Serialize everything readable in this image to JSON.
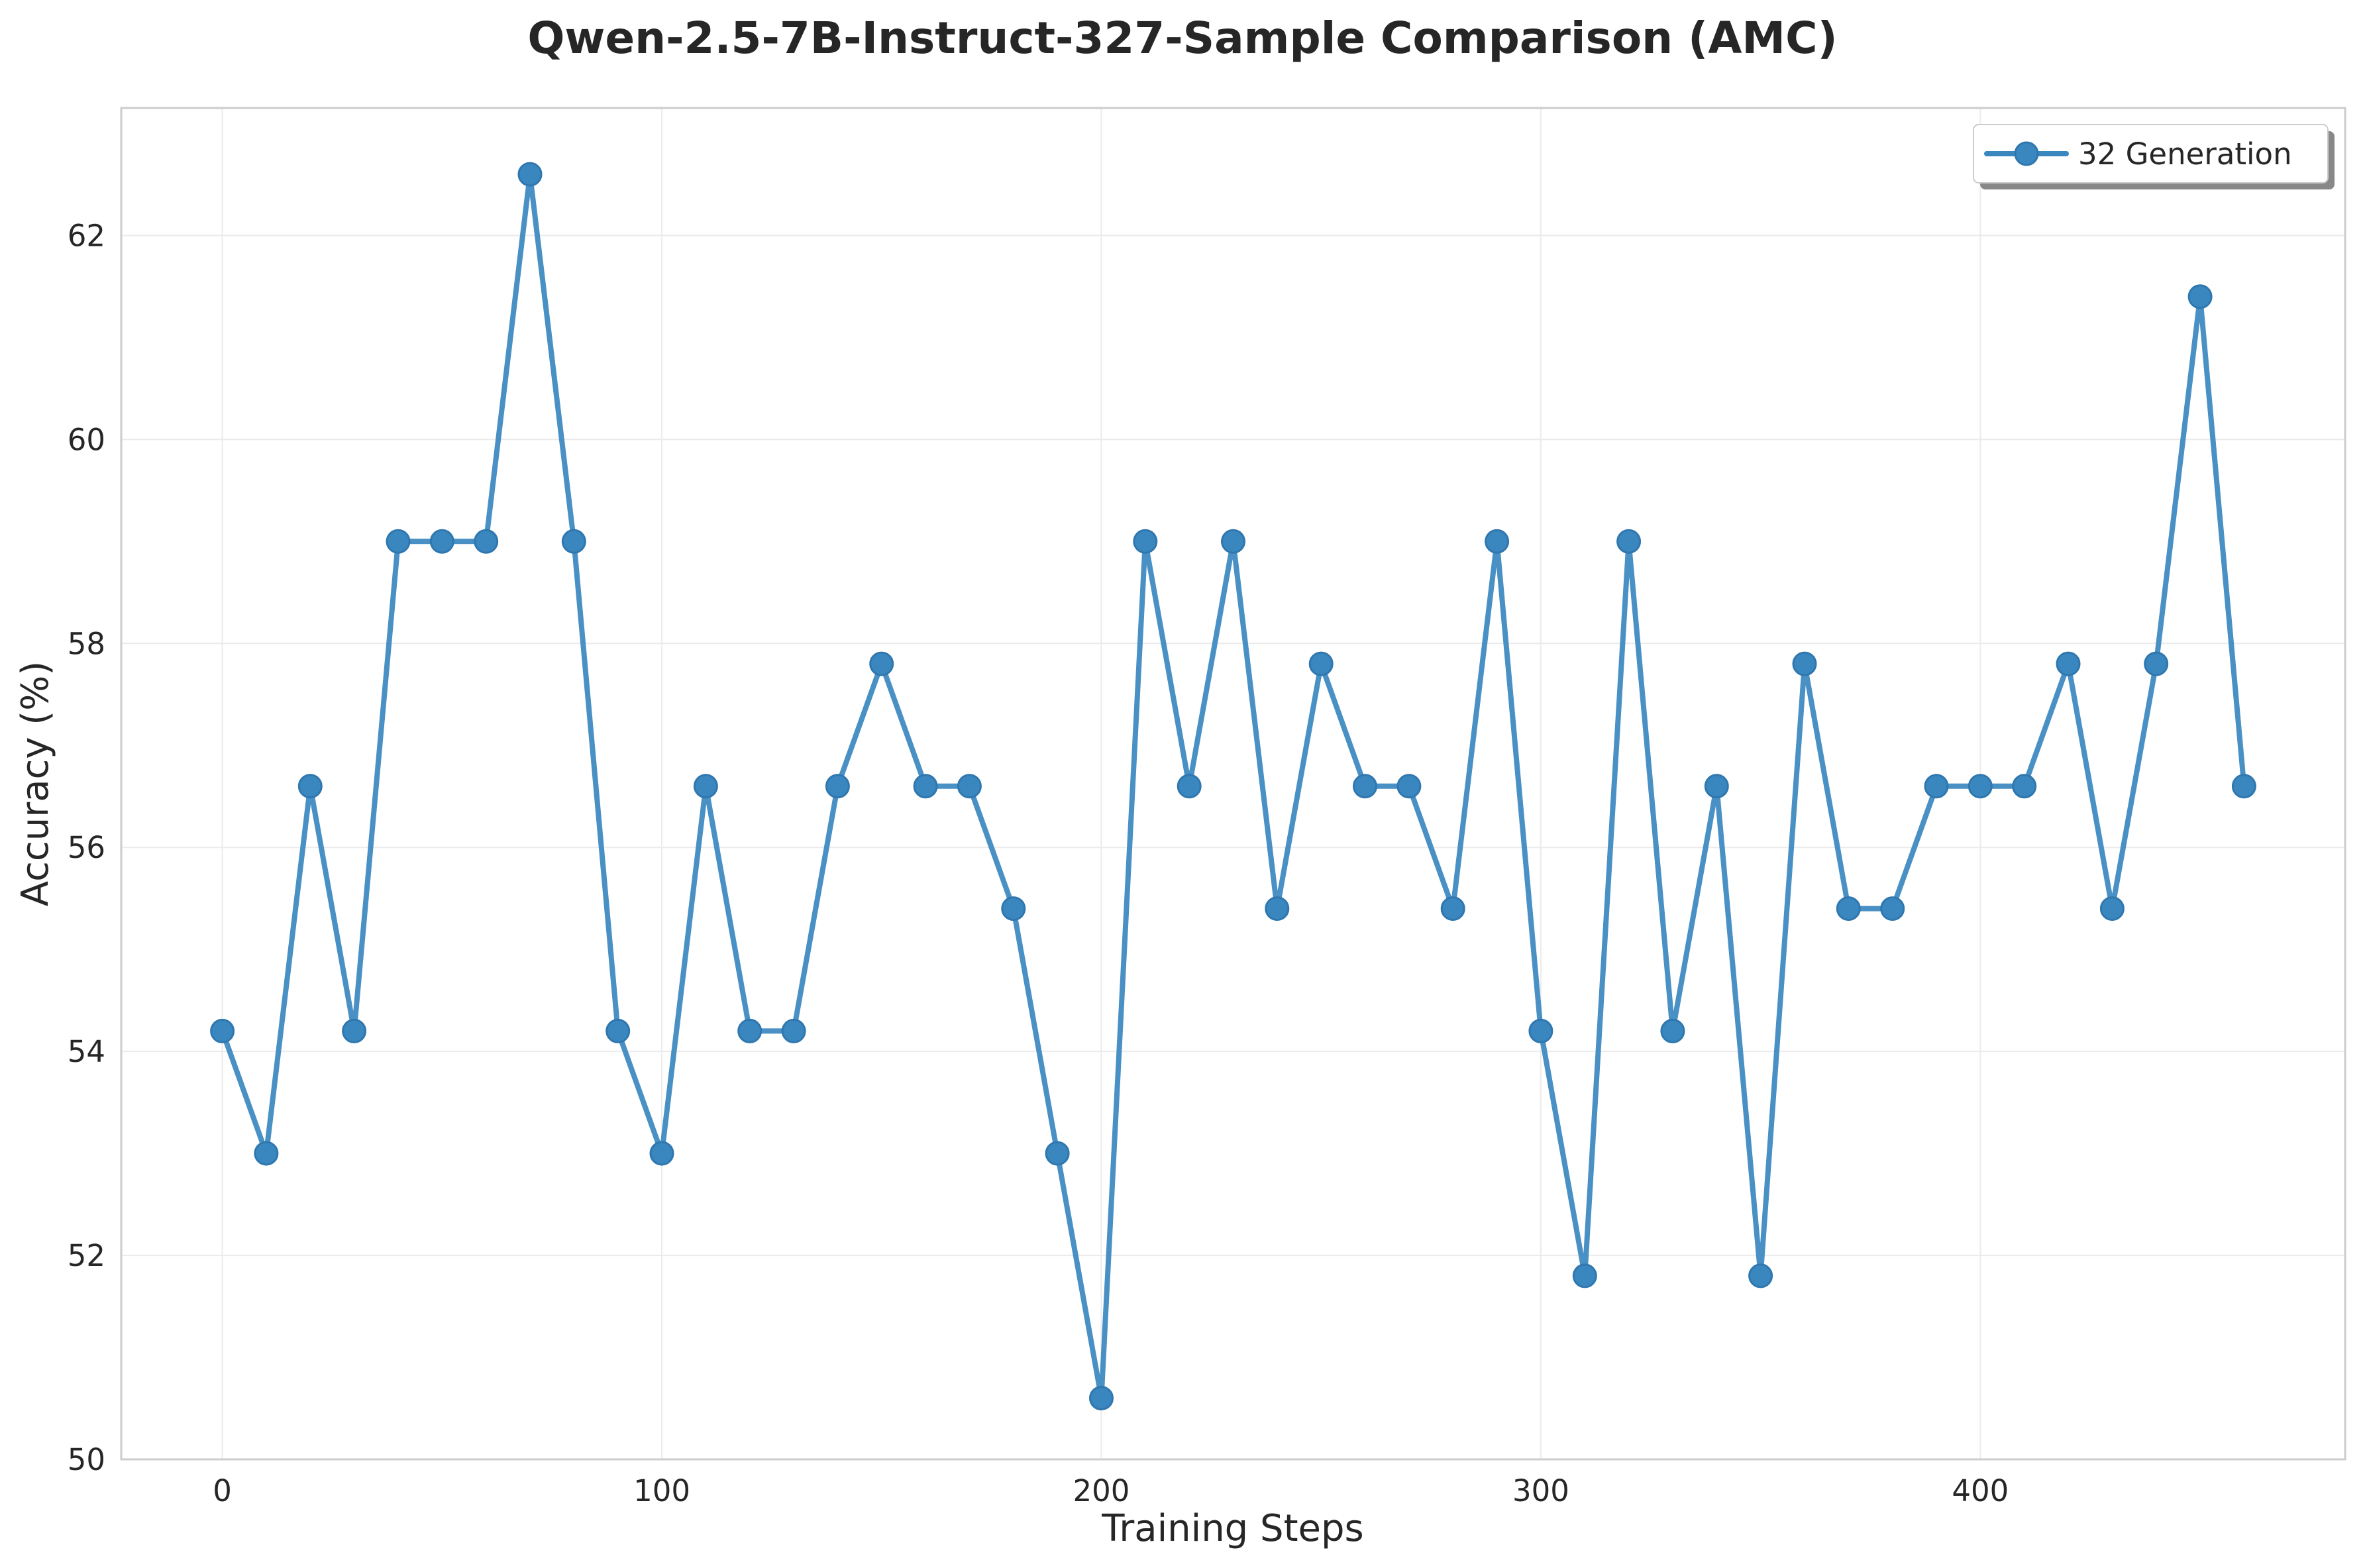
{
  "chart_data": {
    "type": "line",
    "title": "Qwen-2.5-7B-Instruct-327-Sample Comparison (AMC)",
    "xlabel": "Training Steps",
    "ylabel": "Accuracy (%)",
    "xlim": [
      -23,
      483
    ],
    "ylim": [
      50,
      63.25
    ],
    "xticks": [
      "0",
      "100",
      "200",
      "300",
      "400"
    ],
    "yticks": [
      "50",
      "52",
      "54",
      "56",
      "58",
      "60",
      "62"
    ],
    "grid": true,
    "legend_position": "top-right",
    "colors": {
      "series": "#3a87c0",
      "axes": "#cccccc",
      "grid": "#ebebeb"
    },
    "series": [
      {
        "name": "32 Generation",
        "x": [
          0,
          10,
          20,
          30,
          40,
          50,
          60,
          70,
          80,
          90,
          100,
          110,
          120,
          130,
          140,
          150,
          160,
          170,
          180,
          190,
          200,
          210,
          220,
          230,
          240,
          250,
          260,
          270,
          280,
          290,
          300,
          310,
          320,
          330,
          340,
          350,
          360,
          370,
          380,
          390,
          400,
          410,
          420,
          430,
          440,
          450,
          460
        ],
        "y": [
          54.2,
          53.0,
          56.6,
          54.2,
          59.0,
          59.0,
          59.0,
          62.6,
          59.0,
          54.2,
          53.0,
          56.6,
          54.2,
          54.2,
          56.6,
          57.8,
          56.6,
          56.6,
          55.4,
          53.0,
          50.6,
          59.0,
          56.6,
          59.0,
          55.4,
          57.8,
          56.6,
          56.6,
          55.4,
          59.0,
          54.2,
          51.8,
          59.0,
          54.2,
          56.6,
          51.8,
          57.8,
          55.4,
          55.4,
          56.6,
          56.6,
          56.6,
          57.8,
          55.4,
          57.8,
          61.4,
          56.6
        ]
      }
    ]
  }
}
